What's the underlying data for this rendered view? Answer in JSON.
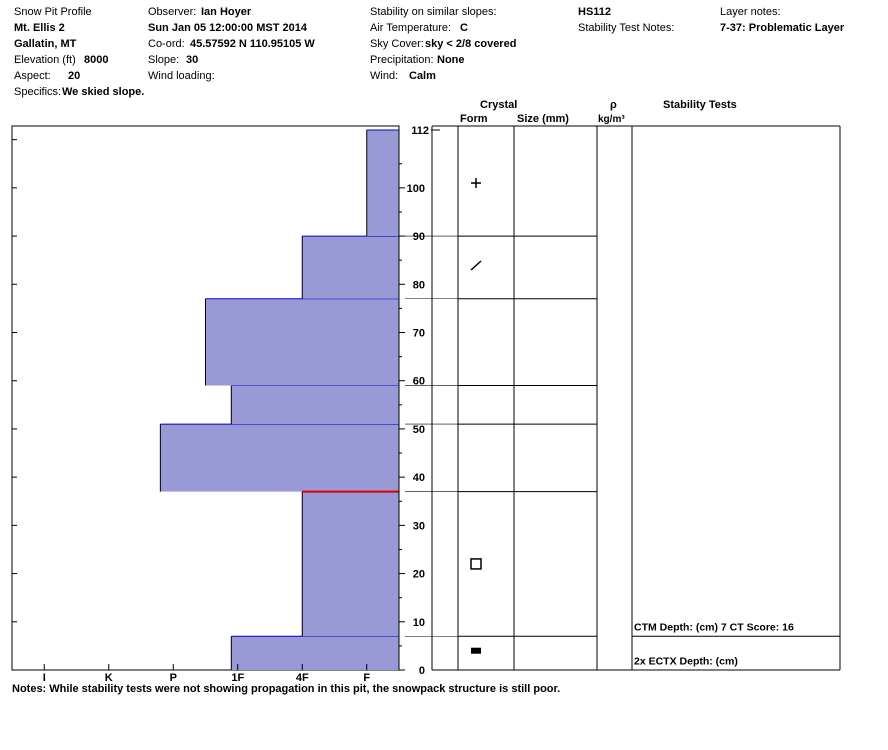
{
  "header": {
    "title": "Snow Pit Profile",
    "location": "Mt. Ellis  2",
    "region": "Gallatin, MT",
    "elevation_label": "Elevation (ft)",
    "elevation_value": "8000",
    "aspect_label": "Aspect:",
    "aspect_value": "20",
    "specifics_label": "Specifics:",
    "specifics_value": "We skied slope.",
    "observer_label": "Observer:",
    "observer_value": "Ian Hoyer",
    "date": "Sun Jan 05 12:00:00 MST 2014",
    "coord_label": "Co-ord:",
    "coord_value": "45.57592 N 110.95105 W",
    "slope_label": "Slope:",
    "slope_value": "30",
    "wind_loading_label": "Wind loading:",
    "stability_label": "Stability on similar slopes:",
    "air_temp_label": "Air Temperature:",
    "air_temp_value": "C",
    "sky_label": "Sky Cover:",
    "sky_value": "sky < 2/8 covered",
    "precip_label": "Precipitation:",
    "precip_value": "None",
    "wind_label": "Wind:",
    "wind_value": "Calm",
    "hs": "HS112",
    "stability_notes_label": "Stability Test Notes:",
    "layer_notes_label": "Layer notes:",
    "layer_notes_value": "7-37: Problematic Layer"
  },
  "columns": {
    "crystal": "Crystal",
    "form": "Form",
    "size": "Size (mm)",
    "rho": "ρ",
    "density_unit": "kg/m³",
    "stability_tests": "Stability Tests"
  },
  "notes": "Notes:  While stability tests were not showing propagation in this pit, the snowpack structure is still poor.",
  "chart_data": {
    "type": "bar",
    "ylim": [
      0,
      112
    ],
    "y_ticks": [
      0,
      10,
      20,
      30,
      40,
      50,
      60,
      70,
      80,
      90,
      100
    ],
    "y_top_label": "112",
    "hardness_scale": [
      "I",
      "K",
      "P",
      "1F",
      "4F",
      "F"
    ],
    "hardness_scale_note": "hardness index from right edge: F=1, 4F=2, 1F=3, P=4, K=5, I=6",
    "bar_color": "#9999d6",
    "weak_layer_color": "#dd0000",
    "weak_layer_depth": 37,
    "layers": [
      {
        "bottom": 0,
        "top": 7,
        "hardness": 2.6
      },
      {
        "bottom": 7,
        "top": 37,
        "hardness": 1.5
      },
      {
        "bottom": 37,
        "top": 51,
        "hardness": 3.7
      },
      {
        "bottom": 51,
        "top": 59,
        "hardness": 2.6
      },
      {
        "bottom": 59,
        "top": 77,
        "hardness": 3.0
      },
      {
        "bottom": 77,
        "top": 90,
        "hardness": 1.5
      },
      {
        "bottom": 90,
        "top": 112,
        "hardness": 0.5
      }
    ],
    "layer_boundaries": [
      7,
      37,
      51,
      59,
      77,
      90
    ],
    "grain_forms": [
      {
        "depth": 101,
        "form": "plus"
      },
      {
        "depth": 84,
        "form": "slash"
      },
      {
        "depth": 22,
        "form": "square"
      },
      {
        "depth": 4,
        "form": "filled"
      }
    ],
    "stability_tests": [
      {
        "depth": 9,
        "text": "CTM  Depth: (cm) 7 CT Score: 16"
      },
      {
        "depth": 2,
        "text": "2x ECTX  Depth: (cm)"
      }
    ]
  }
}
